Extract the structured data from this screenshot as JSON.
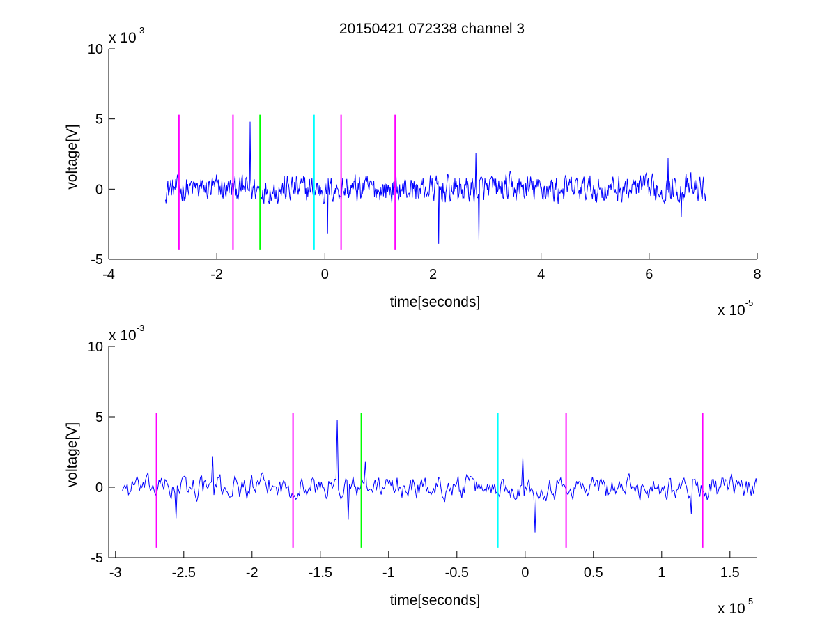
{
  "title": "20150421 072338 channel 3",
  "colors": {
    "signal": "#0000ff",
    "marker_magenta": "#ff00ff",
    "marker_green": "#00ff00",
    "marker_cyan": "#00ffff",
    "axis": "#000000",
    "background": "#ffffff"
  },
  "chart_data": [
    {
      "type": "line",
      "title": "20150421 072338 channel 3",
      "xlabel": "time[seconds]",
      "ylabel": "voltage[V]",
      "x_multiplier": {
        "base": "x 10",
        "exp": "-5"
      },
      "y_multiplier": {
        "base": "x 10",
        "exp": "-3"
      },
      "xlim": [
        -4,
        8
      ],
      "ylim": [
        -5,
        10
      ],
      "xticks": [
        -4,
        -2,
        0,
        2,
        4,
        6,
        8
      ],
      "yticks": [
        -5,
        0,
        5,
        10
      ],
      "xtick_labels": [
        "-4",
        "-2",
        "0",
        "2",
        "4",
        "6",
        "8"
      ],
      "ytick_labels": [
        "-5",
        "0",
        "5",
        "10"
      ],
      "grid": false,
      "series": [
        {
          "color": "#0000ff",
          "x_range": [
            -2.95,
            7.05
          ],
          "baseline": 0,
          "noise_amplitude": 0.9,
          "spikes": [
            {
              "x": -1.38,
              "y": 4.8
            },
            {
              "x": -1.2,
              "y": 1.8
            },
            {
              "x": 0.05,
              "y": -3.2
            },
            {
              "x": 2.1,
              "y": -3.9
            },
            {
              "x": 2.8,
              "y": 2.6
            },
            {
              "x": 2.85,
              "y": -3.6
            },
            {
              "x": 6.35,
              "y": 2.2
            },
            {
              "x": 6.6,
              "y": -2.0
            }
          ]
        }
      ],
      "markers": [
        {
          "x": -2.7,
          "y_range": [
            -4.3,
            5.3
          ],
          "color": "#ff00ff"
        },
        {
          "x": -1.7,
          "y_range": [
            -4.3,
            5.3
          ],
          "color": "#ff00ff"
        },
        {
          "x": -1.2,
          "y_range": [
            -4.3,
            5.3
          ],
          "color": "#00ff00"
        },
        {
          "x": -0.2,
          "y_range": [
            -4.3,
            5.3
          ],
          "color": "#00ffff"
        },
        {
          "x": 0.3,
          "y_range": [
            -4.3,
            5.3
          ],
          "color": "#ff00ff"
        },
        {
          "x": 1.3,
          "y_range": [
            -4.3,
            5.3
          ],
          "color": "#ff00ff"
        }
      ]
    },
    {
      "type": "line",
      "xlabel": "time[seconds]",
      "ylabel": "voltage[V]",
      "x_multiplier": {
        "base": "x 10",
        "exp": "-5"
      },
      "y_multiplier": {
        "base": "x 10",
        "exp": "-3"
      },
      "xlim": [
        -3.05,
        1.7
      ],
      "ylim": [
        -5,
        10
      ],
      "xticks": [
        -3,
        -2.5,
        -2,
        -1.5,
        -1,
        -0.5,
        0,
        0.5,
        1,
        1.5
      ],
      "yticks": [
        -5,
        0,
        5,
        10
      ],
      "xtick_labels": [
        "-3",
        "-2.5",
        "-2",
        "-1.5",
        "-1",
        "-0.5",
        "0",
        "0.5",
        "1",
        "1.5"
      ],
      "ytick_labels": [
        "-5",
        "0",
        "5",
        "10"
      ],
      "grid": false,
      "series": [
        {
          "color": "#0000ff",
          "x_range": [
            -2.95,
            1.7
          ],
          "baseline": 0,
          "noise_amplitude": 0.75,
          "spikes": [
            {
              "x": -2.56,
              "y": -2.2
            },
            {
              "x": -2.29,
              "y": 2.2
            },
            {
              "x": -1.38,
              "y": 4.8
            },
            {
              "x": -1.3,
              "y": -2.3
            },
            {
              "x": -1.17,
              "y": 1.8
            },
            {
              "x": -0.02,
              "y": 2.1
            },
            {
              "x": 0.07,
              "y": -3.2
            },
            {
              "x": 1.22,
              "y": -1.9
            }
          ]
        }
      ],
      "markers": [
        {
          "x": -2.7,
          "y_range": [
            -4.3,
            5.3
          ],
          "color": "#ff00ff"
        },
        {
          "x": -1.7,
          "y_range": [
            -4.3,
            5.3
          ],
          "color": "#ff00ff"
        },
        {
          "x": -1.2,
          "y_range": [
            -4.3,
            5.3
          ],
          "color": "#00ff00"
        },
        {
          "x": -0.2,
          "y_range": [
            -4.3,
            5.3
          ],
          "color": "#00ffff"
        },
        {
          "x": 0.3,
          "y_range": [
            -4.3,
            5.3
          ],
          "color": "#ff00ff"
        },
        {
          "x": 1.3,
          "y_range": [
            -4.3,
            5.3
          ],
          "color": "#ff00ff"
        }
      ]
    }
  ]
}
